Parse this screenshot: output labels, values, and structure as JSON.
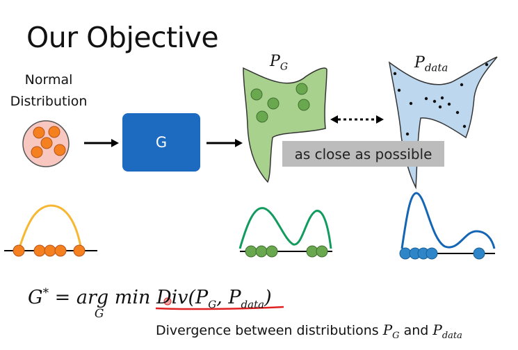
{
  "slide": {
    "title": "Our Objective",
    "normal_label_line1": "Normal",
    "normal_label_line2": "Distribution",
    "generator_label": "G",
    "pg_label": "P",
    "pg_sub": "G",
    "pdata_label": "P",
    "pdata_sub": "data",
    "close_label": "as close as possible"
  },
  "formula": {
    "lhs": "G",
    "star": "*",
    "eq": " = ",
    "argmin": "arg min",
    "under": "G",
    "div": "Div(P",
    "div_sub1": "G",
    "comma": ", P",
    "div_sub2": "data",
    "close": ")"
  },
  "caption": {
    "text": "Divergence between distributions ",
    "p1": "P",
    "p1_sub": "G",
    "and": " and ",
    "p2": "P",
    "p2_sub": "data"
  },
  "colors": {
    "orange": "#f58020",
    "orange_curve": "#f7b731",
    "green": "#6aa84f",
    "green_curve": "#129b5e",
    "blue": "#2e86c9",
    "blue_curve": "#1565b5",
    "g_box": "#1d6ac1",
    "underline": "#e02020"
  }
}
